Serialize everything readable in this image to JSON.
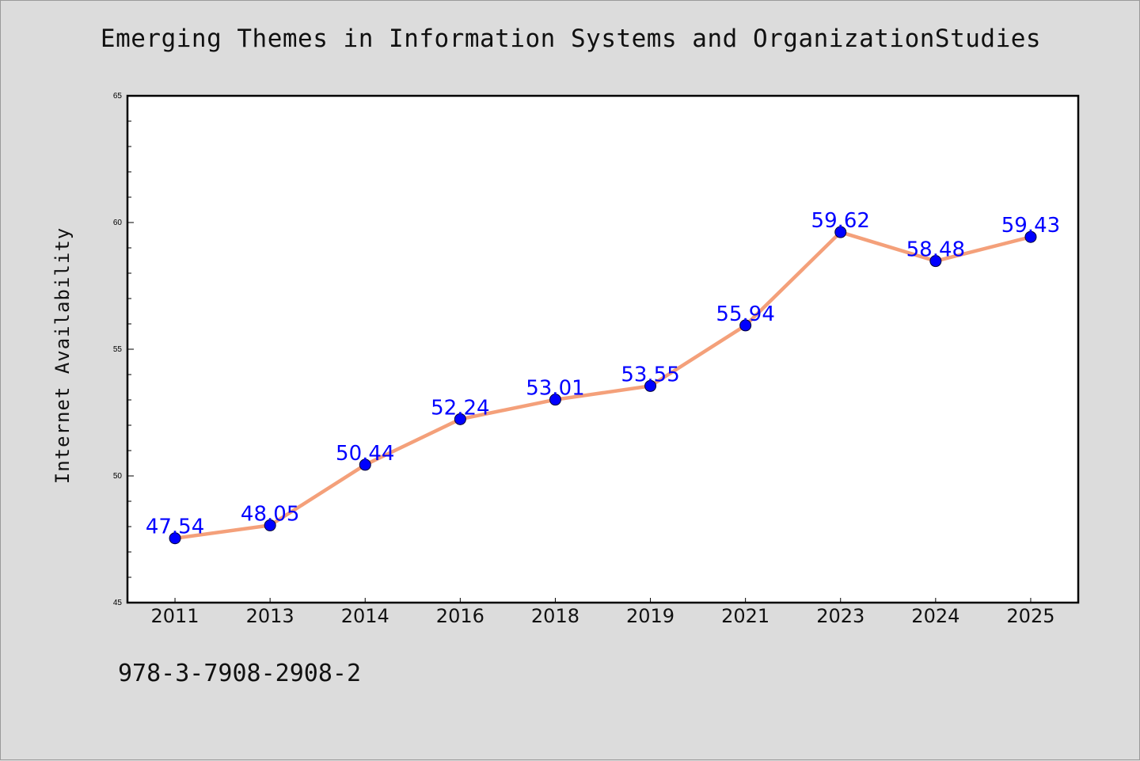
{
  "chart_data": {
    "type": "line",
    "title": "Emerging Themes in Information Systems and OrganizationStudies",
    "xlabel": "",
    "ylabel": "Internet Availability",
    "categories": [
      "2011",
      "2013",
      "2014",
      "2016",
      "2018",
      "2019",
      "2021",
      "2023",
      "2024",
      "2025"
    ],
    "series": [
      {
        "values": [
          47.54,
          48.05,
          50.44,
          52.24,
          53.01,
          53.55,
          55.94,
          59.62,
          58.48,
          59.43
        ],
        "line_color": "#f4a07a",
        "marker_color": "#0000ff"
      }
    ],
    "data_labels": [
      "47.54",
      "48.05",
      "50.44",
      "52.24",
      "53.01",
      "53.55",
      "55.94",
      "59.62",
      "58.48",
      "59.43"
    ],
    "ylim": [
      45,
      65
    ],
    "yticks": [
      "45",
      "50",
      "55",
      "60",
      "65"
    ],
    "grid": false,
    "label_color": "#0000ff"
  },
  "footnote": "978-3-7908-2908-2"
}
